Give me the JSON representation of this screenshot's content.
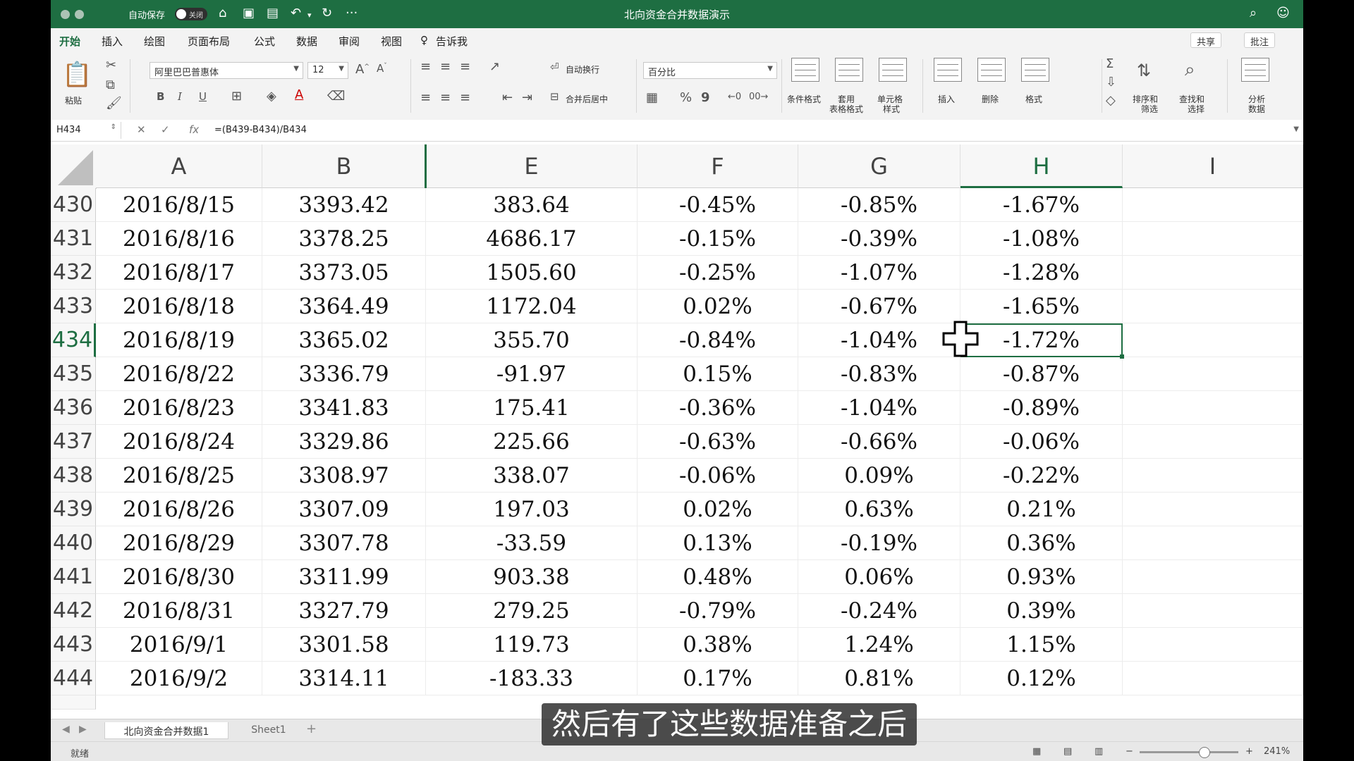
{
  "titlebar": {
    "autosave_label": "自动保存",
    "autosave_state": "关闭",
    "document_title": "北向资金合并数据演示"
  },
  "ribbon_tabs": [
    "开始",
    "插入",
    "绘图",
    "页面布局",
    "公式",
    "数据",
    "审阅",
    "视图"
  ],
  "tell_me": "告诉我",
  "share_label": "共享",
  "comment_label": "批注",
  "ribbon": {
    "paste": "粘贴",
    "font_name": "阿里巴巴普惠体",
    "font_size": "12",
    "bold": "B",
    "italic": "I",
    "underline": "U",
    "wrap_text": "自动换行",
    "merge_center": "合并后居中",
    "number_format": "百分比",
    "percent": "%",
    "comma": "9",
    "conditional_format": "条件格式",
    "table_format_1": "套用",
    "table_format_2": "表格格式",
    "cell_style_1": "单元格",
    "cell_style_2": "样式",
    "insert": "插入",
    "delete": "删除",
    "format": "格式",
    "sort_filter_1": "排序和",
    "sort_filter_2": "筛选",
    "find_select_1": "查找和",
    "find_select_2": "选择",
    "analyze_1": "分析",
    "analyze_2": "数据"
  },
  "formula_bar": {
    "name_box": "H434",
    "formula": "=(B439-B434)/B434"
  },
  "columns": [
    "A",
    "B",
    "E",
    "F",
    "G",
    "H",
    "I"
  ],
  "rows": [
    {
      "num": "430",
      "A": "2016/8/15",
      "B": "3393.42",
      "E": "383.64",
      "F": "-0.45%",
      "G": "-0.85%",
      "H": "-1.67%"
    },
    {
      "num": "431",
      "A": "2016/8/16",
      "B": "3378.25",
      "E": "4686.17",
      "F": "-0.15%",
      "G": "-0.39%",
      "H": "-1.08%"
    },
    {
      "num": "432",
      "A": "2016/8/17",
      "B": "3373.05",
      "E": "1505.60",
      "F": "-0.25%",
      "G": "-1.07%",
      "H": "-1.28%"
    },
    {
      "num": "433",
      "A": "2016/8/18",
      "B": "3364.49",
      "E": "1172.04",
      "F": "0.02%",
      "G": "-0.67%",
      "H": "-1.65%"
    },
    {
      "num": "434",
      "A": "2016/8/19",
      "B": "3365.02",
      "E": "355.70",
      "F": "-0.84%",
      "G": "-1.04%",
      "H": "-1.72%"
    },
    {
      "num": "435",
      "A": "2016/8/22",
      "B": "3336.79",
      "E": "-91.97",
      "F": "0.15%",
      "G": "-0.83%",
      "H": "-0.87%"
    },
    {
      "num": "436",
      "A": "2016/8/23",
      "B": "3341.83",
      "E": "175.41",
      "F": "-0.36%",
      "G": "-1.04%",
      "H": "-0.89%"
    },
    {
      "num": "437",
      "A": "2016/8/24",
      "B": "3329.86",
      "E": "225.66",
      "F": "-0.63%",
      "G": "-0.66%",
      "H": "-0.06%"
    },
    {
      "num": "438",
      "A": "2016/8/25",
      "B": "3308.97",
      "E": "338.07",
      "F": "-0.06%",
      "G": "0.09%",
      "H": "-0.22%"
    },
    {
      "num": "439",
      "A": "2016/8/26",
      "B": "3307.09",
      "E": "197.03",
      "F": "0.02%",
      "G": "0.63%",
      "H": "0.21%"
    },
    {
      "num": "440",
      "A": "2016/8/29",
      "B": "3307.78",
      "E": "-33.59",
      "F": "0.13%",
      "G": "-0.19%",
      "H": "0.36%"
    },
    {
      "num": "441",
      "A": "2016/8/30",
      "B": "3311.99",
      "E": "903.38",
      "F": "0.48%",
      "G": "0.06%",
      "H": "0.93%"
    },
    {
      "num": "442",
      "A": "2016/8/31",
      "B": "3327.79",
      "E": "279.25",
      "F": "-0.79%",
      "G": "-0.24%",
      "H": "0.39%"
    },
    {
      "num": "443",
      "A": "2016/9/1",
      "B": "3301.58",
      "E": "119.73",
      "F": "0.38%",
      "G": "1.24%",
      "H": "1.15%"
    },
    {
      "num": "444",
      "A": "2016/9/2",
      "B": "3314.11",
      "E": "-183.33",
      "F": "0.17%",
      "G": "0.81%",
      "H": "0.12%"
    }
  ],
  "sheet_tabs": [
    "北向资金合并数据1",
    "Sheet1"
  ],
  "status": {
    "ready": "就绪",
    "zoom": "241%"
  },
  "subtitle": "然后有了这些数据准备之后",
  "colors": {
    "accent": "#1e6e42",
    "selection_border": "#1e6e42"
  }
}
